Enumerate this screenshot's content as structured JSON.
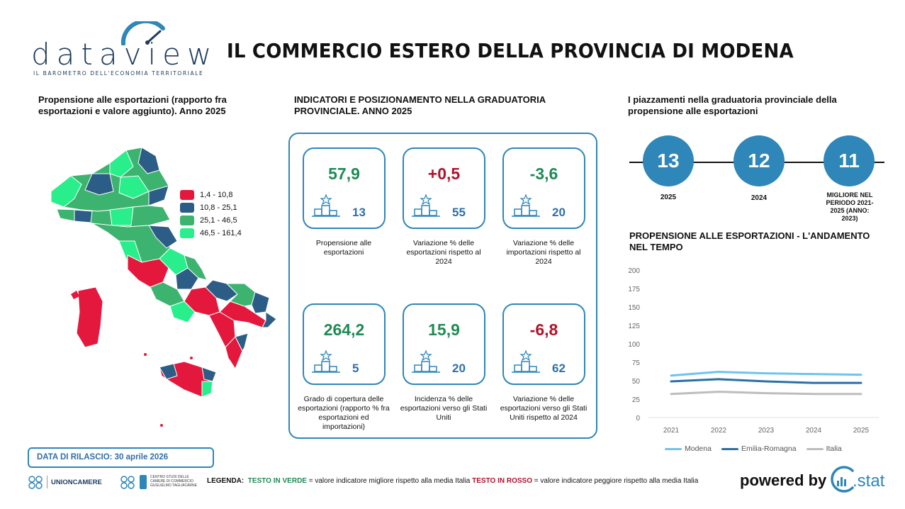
{
  "header": {
    "logo_text": "dataview",
    "logo_subtitle": "IL BAROMETRO DELL'ECONOMIA TERRITORIALE",
    "title": "IL COMMERCIO ESTERO DELLA PROVINCIA DI MODENA"
  },
  "map_section": {
    "title": "Propensione alle esportazioni (rapporto fra esportazioni e valore aggiunto). Anno 2025",
    "legend": [
      {
        "label": "1,4 - 10,8",
        "color": "#e4183c"
      },
      {
        "label": "10,8 - 25,1",
        "color": "#2b5d86"
      },
      {
        "label": "25,1 - 46,5",
        "color": "#3cb36e"
      },
      {
        "label": "46,5 - 161,4",
        "color": "#29ee8c"
      }
    ]
  },
  "indicators": {
    "title": "INDICATORI E POSIZIONAMENTO NELLA GRADUATORIA PROVINCIALE. ANNO 2025",
    "cards": [
      {
        "value": "57,9",
        "rank": "13",
        "desc": "Propensione alle esportazioni",
        "status": "green"
      },
      {
        "value": "+0,5",
        "rank": "55",
        "desc": "Variazione % delle esportazioni rispetto al 2024",
        "status": "red"
      },
      {
        "value": "-3,6",
        "rank": "20",
        "desc": "Variazione % delle importazioni rispetto al 2024",
        "status": "green"
      },
      {
        "value": "264,2",
        "rank": "5",
        "desc": "Grado di copertura delle esportazioni (rapporto % fra esportazioni ed importazioni)",
        "status": "green"
      },
      {
        "value": "15,9",
        "rank": "20",
        "desc": "Incidenza % delle esportazioni verso gli Stati Uniti",
        "status": "green"
      },
      {
        "value": "-6,8",
        "rank": "62",
        "desc": "Variazione % delle esportazioni verso gli Stati Uniti rispetto al 2024",
        "status": "red"
      }
    ]
  },
  "ranking": {
    "title": "I piazzamenti nella graduatoria provinciale della propensione alle esportazioni",
    "items": [
      {
        "value": "13",
        "label": "2025"
      },
      {
        "value": "12",
        "label": "2024"
      },
      {
        "value": "11",
        "label": "MIGLIORE NEL PERIODO 2021-2025 (ANNO: 2023)"
      }
    ]
  },
  "trend": {
    "title": "PROPENSIONE ALLE ESPORTAZIONI - L'ANDAMENTO NEL TEMPO"
  },
  "chart_data": {
    "type": "line",
    "x": [
      "2021",
      "2022",
      "2023",
      "2024",
      "2025"
    ],
    "ylim": [
      0,
      200
    ],
    "yticks": [
      0,
      25,
      50,
      75,
      100,
      125,
      150,
      175,
      200
    ],
    "grid": false,
    "legend_position": "bottom",
    "series": [
      {
        "name": "Modena",
        "color": "#6ec3f0",
        "values": [
          57,
          62,
          60,
          59,
          58
        ]
      },
      {
        "name": "Emilia-Romagna",
        "color": "#2a6fa6",
        "values": [
          49,
          52,
          49,
          47,
          47
        ]
      },
      {
        "name": "Italia",
        "color": "#bdbdbd",
        "values": [
          32,
          35,
          33,
          32,
          32
        ]
      }
    ]
  },
  "footer": {
    "release": "DATA DI RILASCIO: 30 aprile 2026",
    "unioncamere": "UNIONCAMERE",
    "centro_studi": "CENTRO STUDI DELLE CAMERE DI COMMERCIO GUGLIELMO TAGLIACARNE",
    "legend_prefix": "LEGENDA:",
    "legend_green": "TESTO IN VERDE",
    "legend_green_text": "= valore indicatore migliore rispetto alla media Italia",
    "legend_red": "TESTO IN ROSSO",
    "legend_red_text": "= valore indicatore peggiore rispetto alla media Italia",
    "powered_by": "powered by",
    "brand": ".stat"
  }
}
